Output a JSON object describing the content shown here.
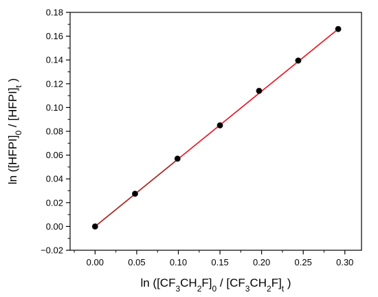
{
  "chart_data": {
    "type": "scatter",
    "title": "",
    "xlabel_parts": [
      "ln ([CF",
      "3",
      "CH",
      "2",
      "F]",
      "0",
      " / [CF",
      "3",
      "CH",
      "2",
      "F]",
      "t",
      " )"
    ],
    "ylabel_parts": [
      "ln ([HFPI]",
      "0",
      " / [HFPI]",
      "t",
      " )"
    ],
    "xlim": [
      -0.03,
      0.32
    ],
    "ylim": [
      -0.02,
      0.18
    ],
    "x_ticks": [
      0.0,
      0.05,
      0.1,
      0.15,
      0.2,
      0.25,
      0.3
    ],
    "x_tick_labels": [
      "0.00",
      "0.05",
      "0.10",
      "0.15",
      "0.20",
      "0.25",
      "0.30"
    ],
    "y_ticks": [
      -0.02,
      0.0,
      0.02,
      0.04,
      0.06,
      0.08,
      0.1,
      0.12,
      0.14,
      0.16,
      0.18
    ],
    "y_tick_labels": [
      "−0.02",
      "0.00",
      "0.02",
      "0.04",
      "0.06",
      "0.08",
      "0.10",
      "0.12",
      "0.14",
      "0.16",
      "0.18"
    ],
    "grid": false,
    "legend": "none",
    "series": [
      {
        "points": [
          [
            0.0,
            0.0
          ],
          [
            0.048,
            0.0275
          ],
          [
            0.099,
            0.057
          ],
          [
            0.15,
            0.085
          ],
          [
            0.197,
            0.114
          ],
          [
            0.244,
            0.1395
          ],
          [
            0.292,
            0.166
          ]
        ],
        "color": "#000000"
      }
    ],
    "fit_line": {
      "x": [
        0.0,
        0.292
      ],
      "y": [
        0.0,
        0.166
      ],
      "color": "#e31a1c"
    },
    "colors": {
      "marker": "#000000",
      "fit": "#e31a1c",
      "band": "#ff4fd8",
      "axis": "#000000"
    }
  }
}
